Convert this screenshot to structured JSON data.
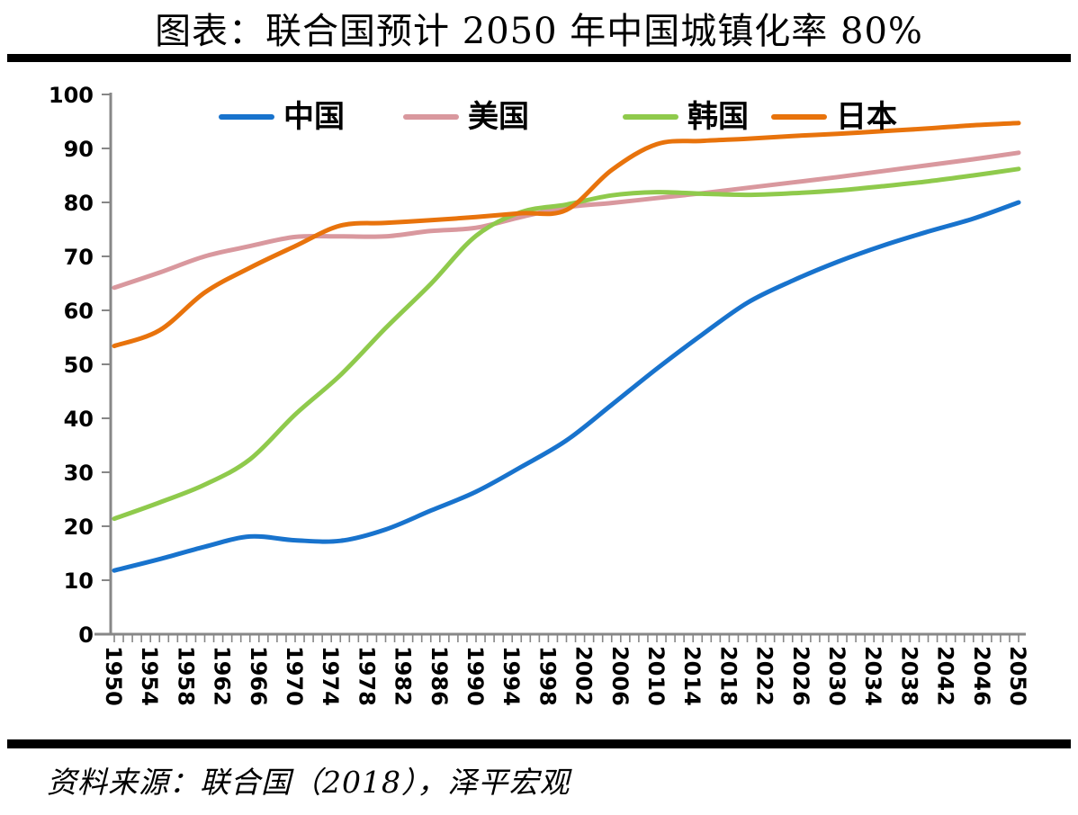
{
  "page": {
    "title": "图表：联合国预计 2050 年中国城镇化率 80%",
    "source": "资料来源：联合国（2018），泽平宏观"
  },
  "chart_data": {
    "type": "line",
    "title": "图表：联合国预计 2050 年中国城镇化率 80%",
    "source": "资料来源：联合国（2018），泽平宏观",
    "xlabel": "",
    "ylabel": "",
    "ylim": [
      0,
      100
    ],
    "y_ticks": [
      0,
      10,
      20,
      30,
      40,
      50,
      60,
      70,
      80,
      90,
      100
    ],
    "xlim": [
      1950,
      2050
    ],
    "x_tick_labels": [
      "1950",
      "1954",
      "1958",
      "1962",
      "1966",
      "1970",
      "1974",
      "1978",
      "1982",
      "1986",
      "1990",
      "1994",
      "1998",
      "2002",
      "2006",
      "2010",
      "2014",
      "2018",
      "2022",
      "2026",
      "2030",
      "2034",
      "2038",
      "2042",
      "2046",
      "2050"
    ],
    "x_minor_tick_step_years": 1,
    "grid": false,
    "legend_position": "top",
    "axis_color": "#878787",
    "x": [
      1950,
      1955,
      1960,
      1965,
      1970,
      1975,
      1980,
      1985,
      1990,
      1995,
      2000,
      2005,
      2010,
      2015,
      2020,
      2025,
      2030,
      2035,
      2040,
      2045,
      2050
    ],
    "series": [
      {
        "name": "中国",
        "color": "#1873CD",
        "values": [
          11.8,
          13.9,
          16.2,
          18.1,
          17.4,
          17.3,
          19.4,
          22.9,
          26.4,
          31.0,
          35.9,
          42.5,
          49.2,
          55.5,
          61.4,
          65.5,
          69.0,
          72.0,
          74.6,
          77.0,
          80.0
        ]
      },
      {
        "name": "美国",
        "color": "#D9989E",
        "values": [
          64.2,
          67.0,
          70.0,
          71.9,
          73.6,
          73.7,
          73.7,
          74.7,
          75.3,
          77.3,
          79.1,
          79.9,
          80.8,
          81.7,
          82.7,
          83.7,
          84.7,
          85.8,
          86.9,
          88.0,
          89.2
        ]
      },
      {
        "name": "韩国",
        "color": "#8FCA4C",
        "values": [
          21.4,
          24.4,
          27.7,
          32.4,
          40.7,
          48.0,
          56.7,
          64.9,
          73.8,
          78.2,
          79.6,
          81.3,
          81.9,
          81.6,
          81.4,
          81.7,
          82.2,
          83.0,
          83.9,
          85.0,
          86.2
        ]
      },
      {
        "name": "日本",
        "color": "#E8730C",
        "values": [
          53.4,
          56.3,
          63.3,
          67.9,
          71.9,
          75.7,
          76.2,
          76.7,
          77.3,
          78.0,
          78.6,
          86.0,
          90.8,
          91.4,
          91.8,
          92.3,
          92.7,
          93.2,
          93.7,
          94.3,
          94.7
        ]
      }
    ]
  }
}
